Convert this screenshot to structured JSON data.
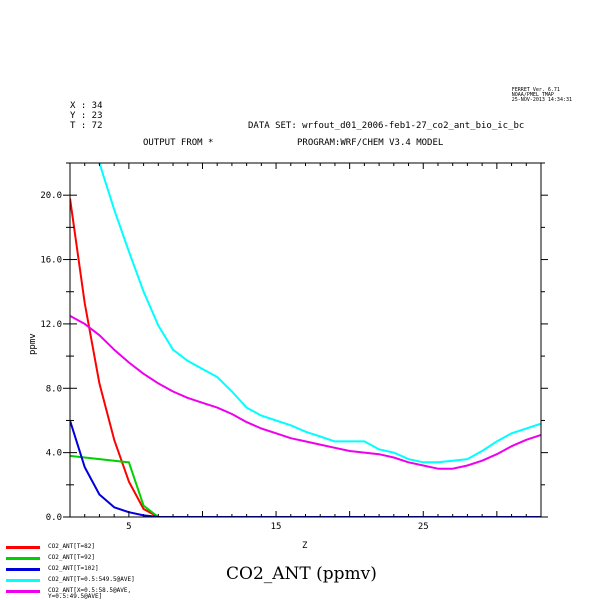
{
  "header": {
    "ferret_stamp": [
      "FERRET Ver. 6.71",
      "NOAA/PMEL TMAP",
      "25-NOV-2013 14:34:31"
    ],
    "x_label": "X : 34",
    "y_label": "Y : 23",
    "t_label": "T : 72",
    "dataset": "DATA SET: wrfout_d01_2006-feb1-27_co2_ant_bio_ic_bc",
    "output_from": "OUTPUT FROM *",
    "program": "PROGRAM:WRF/CHEM V3.4 MODEL"
  },
  "chart_data": {
    "type": "line",
    "title": "CO2_ANT (ppmv)",
    "xlabel": "Z",
    "ylabel": "ppmv",
    "xlim": [
      1,
      33
    ],
    "ylim": [
      0,
      22
    ],
    "x_ticks": [
      5,
      15,
      25
    ],
    "y_ticks": [
      0,
      4,
      8,
      12,
      16,
      20
    ],
    "y_tick_labels": [
      "0.0",
      "4.0",
      "8.0",
      "12.0",
      "16.0",
      "20.0"
    ],
    "grid": false,
    "legend_position": "bottom-left",
    "series": [
      {
        "name": "CO2_ANT[T=82]",
        "color": "#ff0000",
        "x": [
          1,
          2,
          3,
          4,
          5,
          6,
          7,
          8,
          9,
          10,
          11,
          12,
          13,
          14,
          15,
          16,
          17,
          18,
          19,
          20,
          21,
          22,
          23,
          24,
          25,
          26,
          27,
          28,
          29,
          30,
          31,
          32,
          33
        ],
        "y": [
          19.8,
          13.3,
          8.3,
          4.8,
          2.2,
          0.5,
          0.0,
          0.0,
          0.0,
          0.0,
          0.0,
          0.0,
          0.0,
          0.0,
          0.0,
          0.0,
          0.0,
          0.0,
          0.0,
          0.0,
          0.0,
          0.0,
          0.0,
          0.0,
          0.0,
          0.0,
          0.0,
          0.0,
          0.0,
          0.0,
          0.0,
          0.0,
          0.0
        ]
      },
      {
        "name": "CO2_ANT[T=92]",
        "color": "#00d000",
        "x": [
          1,
          2,
          3,
          4,
          5,
          6,
          7,
          8,
          9,
          10,
          11,
          12,
          13,
          14,
          15,
          16,
          17,
          18,
          19,
          20,
          21,
          22,
          23,
          24,
          25,
          26,
          27,
          28,
          29,
          30,
          31,
          32,
          33
        ],
        "y": [
          3.8,
          3.7,
          3.6,
          3.5,
          3.4,
          0.7,
          0.0,
          0.0,
          0.0,
          0.0,
          0.0,
          0.0,
          0.0,
          0.0,
          0.0,
          0.0,
          0.0,
          0.0,
          0.0,
          0.0,
          0.0,
          0.0,
          0.0,
          0.0,
          0.0,
          0.0,
          0.0,
          0.0,
          0.0,
          0.0,
          0.0,
          0.0,
          0.0
        ]
      },
      {
        "name": "CO2_ANT[T=102]",
        "color": "#0000dd",
        "x": [
          1,
          2,
          3,
          4,
          5,
          6,
          7,
          8,
          9,
          10,
          11,
          12,
          13,
          14,
          15,
          16,
          17,
          18,
          19,
          20,
          21,
          22,
          23,
          24,
          25,
          26,
          27,
          28,
          29,
          30,
          31,
          32,
          33
        ],
        "y": [
          6.0,
          3.1,
          1.4,
          0.6,
          0.3,
          0.1,
          0.0,
          0.0,
          0.0,
          0.0,
          0.0,
          0.0,
          0.0,
          0.0,
          0.0,
          0.0,
          0.0,
          0.0,
          0.0,
          0.0,
          0.0,
          0.0,
          0.0,
          0.0,
          0.0,
          0.0,
          0.0,
          0.0,
          0.0,
          0.0,
          0.0,
          0.0,
          0.0
        ]
      },
      {
        "name": "CO2_ANT[T=0.5:549.5@AVE]",
        "color": "#00ffff",
        "x": [
          3,
          4,
          5,
          6,
          7,
          8,
          9,
          10,
          11,
          12,
          13,
          14,
          15,
          16,
          17,
          18,
          19,
          20,
          21,
          22,
          23,
          24,
          25,
          26,
          27,
          28,
          29,
          30,
          31,
          32,
          33
        ],
        "y": [
          22.0,
          19.1,
          16.5,
          14.0,
          11.9,
          10.4,
          9.7,
          9.2,
          8.7,
          7.8,
          6.8,
          6.3,
          6.0,
          5.7,
          5.3,
          5.0,
          4.7,
          4.7,
          4.7,
          4.2,
          4.0,
          3.6,
          3.4,
          3.4,
          3.5,
          3.6,
          4.1,
          4.7,
          5.2,
          5.5,
          5.8
        ]
      },
      {
        "name": "CO2_ANT[X=0.5:58.5@AVE,Y=0.5:49.5@AVE]",
        "color": "#ee00ee",
        "x": [
          1,
          2,
          3,
          4,
          5,
          6,
          7,
          8,
          9,
          10,
          11,
          12,
          13,
          14,
          15,
          16,
          17,
          18,
          19,
          20,
          21,
          22,
          23,
          24,
          25,
          26,
          27,
          28,
          29,
          30,
          31,
          32,
          33
        ],
        "y": [
          12.5,
          12.0,
          11.3,
          10.4,
          9.6,
          8.9,
          8.3,
          7.8,
          7.4,
          7.1,
          6.8,
          6.4,
          5.9,
          5.5,
          5.2,
          4.9,
          4.7,
          4.5,
          4.3,
          4.1,
          4.0,
          3.9,
          3.7,
          3.4,
          3.2,
          3.0,
          3.0,
          3.2,
          3.5,
          3.9,
          4.4,
          4.8,
          5.1
        ]
      }
    ]
  },
  "legend": {
    "items": [
      {
        "label": "CO2_ANT[T=82]",
        "color": "#ff0000"
      },
      {
        "label": "CO2_ANT[T=92]",
        "color": "#00d000"
      },
      {
        "label": "CO2_ANT[T=102]",
        "color": "#0000dd"
      },
      {
        "label": "CO2_ANT[T=0.5:549.5@AVE]",
        "color": "#00ffff"
      },
      {
        "label": "CO2_ANT[X=0.5:58.5@AVE,",
        "label2": "Y=0.5:49.5@AVE]",
        "color": "#ee00ee"
      }
    ]
  }
}
